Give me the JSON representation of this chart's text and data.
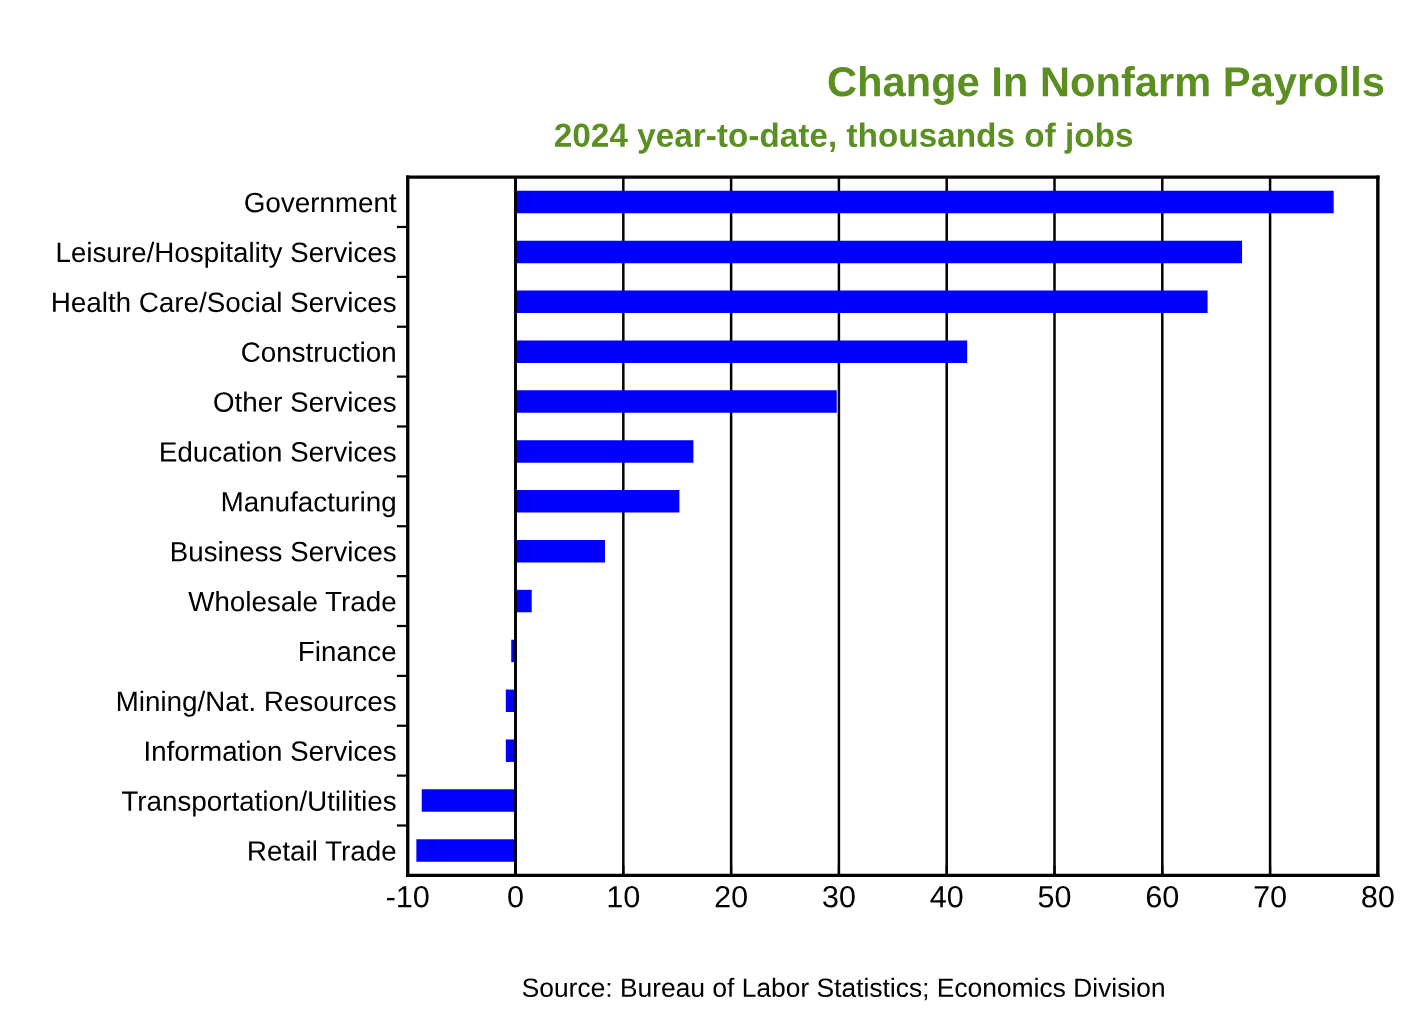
{
  "chart_data": {
    "type": "bar",
    "orientation": "horizontal",
    "title": "Change In Nonfarm Payrolls",
    "subtitle": "2024 year-to-date, thousands of jobs",
    "categories": [
      "Government",
      "Leisure/Hospitality Services",
      "Health Care/Social Services",
      "Construction",
      "Other Services",
      "Education Services",
      "Manufacturing",
      "Business Services",
      "Wholesale Trade",
      "Finance",
      "Mining/Nat. Resources",
      "Information Services",
      "Transportation/Utilities",
      "Retail Trade"
    ],
    "values": [
      75.9,
      67.4,
      64.2,
      41.9,
      29.8,
      16.5,
      15.2,
      8.3,
      1.5,
      -0.4,
      -0.9,
      -0.9,
      -8.7,
      -9.2
    ],
    "color": "#0000ff",
    "xlim": [
      -10,
      80
    ],
    "xticks": [
      -10,
      0,
      10,
      20,
      30,
      40,
      50,
      60,
      70,
      80
    ],
    "grid": "x",
    "annotations": [
      "Source: Bureau of Labor Statistics; Economics Division"
    ]
  }
}
